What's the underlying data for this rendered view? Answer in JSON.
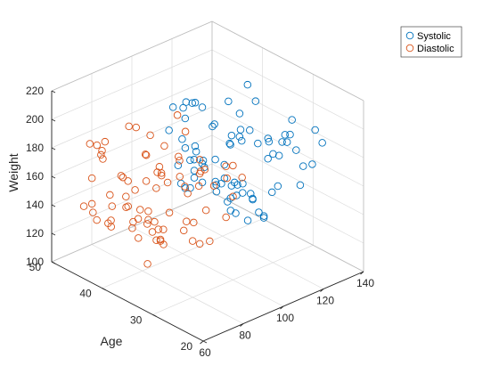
{
  "chart_data": {
    "type": "scatter",
    "title": "",
    "xlabel": "",
    "ylabel": "Age",
    "zlabel": "Weight",
    "xlim": [
      60,
      140
    ],
    "ylim": [
      20,
      50
    ],
    "zlim": [
      100,
      220
    ],
    "xticks": [
      "60",
      "80",
      "100",
      "120",
      "140"
    ],
    "yticks": [
      "20",
      "30",
      "40",
      "50"
    ],
    "zticks": [
      "100",
      "120",
      "140",
      "160",
      "180",
      "200",
      "220"
    ],
    "grid": true,
    "box": true,
    "legend_position": "top-right",
    "series": [
      {
        "name": "Systolic",
        "color": "#0072BD",
        "marker": "circle",
        "points": [
          [
            124,
            38,
            176
          ],
          [
            109,
            43,
            163
          ],
          [
            125,
            38,
            131
          ],
          [
            117,
            40,
            133
          ],
          [
            122,
            49,
            119
          ],
          [
            121,
            46,
            142
          ],
          [
            130,
            33,
            142
          ],
          [
            115,
            40,
            180
          ],
          [
            115,
            28,
            183
          ],
          [
            118,
            31,
            132
          ],
          [
            114,
            45,
            128
          ],
          [
            115,
            42,
            137
          ],
          [
            127,
            25,
            174
          ],
          [
            130,
            39,
            202
          ],
          [
            114,
            36,
            129
          ],
          [
            130,
            48,
            130
          ],
          [
            114,
            44,
            130
          ],
          [
            127,
            43,
            127
          ],
          [
            126,
            30,
            186
          ],
          [
            115,
            33,
            127
          ],
          [
            116,
            44,
            136
          ],
          [
            115,
            46,
            160
          ],
          [
            125,
            26,
            172
          ],
          [
            123,
            33,
            124
          ],
          [
            120,
            31,
            171
          ],
          [
            118,
            30,
            186
          ],
          [
            118,
            28,
            180
          ],
          [
            121,
            40,
            140
          ],
          [
            116,
            42,
            147
          ],
          [
            115,
            34,
            151
          ],
          [
            136,
            28,
            187
          ],
          [
            130,
            38,
            124
          ],
          [
            115,
            29,
            192
          ],
          [
            119,
            38,
            131
          ],
          [
            129,
            38,
            128
          ],
          [
            122,
            39,
            136
          ],
          [
            116,
            44,
            141
          ],
          [
            121,
            37,
            191
          ],
          [
            129,
            42,
            155
          ],
          [
            116,
            40,
            181
          ],
          [
            120,
            39,
            126
          ],
          [
            119,
            41,
            137
          ],
          [
            126,
            29,
            188
          ],
          [
            116,
            37,
            173
          ],
          [
            126,
            40,
            134
          ],
          [
            129,
            45,
            139
          ],
          [
            134,
            39,
            188
          ],
          [
            116,
            49,
            160
          ],
          [
            122,
            46,
            147
          ],
          [
            123,
            45,
            142
          ],
          [
            115,
            44,
            189
          ],
          [
            124,
            48,
            136
          ],
          [
            123,
            34,
            126
          ],
          [
            118,
            49,
            175
          ],
          [
            125,
            36,
            130
          ],
          [
            117,
            35,
            178
          ],
          [
            130,
            41,
            128
          ],
          [
            119,
            45,
            185
          ],
          [
            114,
            45,
            177
          ],
          [
            118,
            48,
            136
          ],
          [
            114,
            35,
            129
          ],
          [
            122,
            38,
            131
          ],
          [
            128,
            42,
            186
          ],
          [
            132,
            25,
            186
          ],
          [
            120,
            33,
            178
          ],
          [
            132,
            31,
            191
          ],
          [
            129,
            49,
            141
          ],
          [
            117,
            27,
            192
          ],
          [
            126,
            39,
            168
          ],
          [
            131,
            44,
            136
          ],
          [
            122,
            28,
            187
          ],
          [
            121,
            35,
            183
          ],
          [
            117,
            37,
            178
          ],
          [
            120,
            44,
            183
          ],
          [
            113,
            45,
            185
          ],
          [
            121,
            25,
            163
          ],
          [
            124,
            27,
            182
          ],
          [
            122,
            48,
            178
          ],
          [
            122,
            42,
            131
          ],
          [
            117,
            29,
            153
          ]
        ]
      },
      {
        "name": "Diastolic",
        "color": "#D95319",
        "marker": "circle",
        "points": [
          [
            93,
            38,
            176
          ],
          [
            77,
            43,
            163
          ],
          [
            83,
            38,
            131
          ],
          [
            75,
            40,
            133
          ],
          [
            80,
            49,
            119
          ],
          [
            70,
            46,
            142
          ],
          [
            88,
            33,
            142
          ],
          [
            82,
            40,
            180
          ],
          [
            78,
            28,
            183
          ],
          [
            86,
            31,
            132
          ],
          [
            77,
            45,
            128
          ],
          [
            68,
            42,
            137
          ],
          [
            74,
            25,
            174
          ],
          [
            95,
            39,
            202
          ],
          [
            79,
            36,
            129
          ],
          [
            92,
            48,
            130
          ],
          [
            89,
            44,
            130
          ],
          [
            83,
            43,
            127
          ],
          [
            86,
            30,
            186
          ],
          [
            65,
            33,
            127
          ],
          [
            83,
            44,
            136
          ],
          [
            70,
            46,
            160
          ],
          [
            90,
            26,
            172
          ],
          [
            96,
            33,
            124
          ],
          [
            80,
            31,
            171
          ],
          [
            84,
            30,
            186
          ],
          [
            92,
            28,
            180
          ],
          [
            83,
            40,
            140
          ],
          [
            92,
            42,
            147
          ],
          [
            71,
            34,
            151
          ],
          [
            95,
            28,
            187
          ],
          [
            82,
            38,
            124
          ],
          [
            71,
            29,
            192
          ],
          [
            73,
            38,
            131
          ],
          [
            97,
            38,
            128
          ],
          [
            91,
            39,
            136
          ],
          [
            75,
            44,
            141
          ],
          [
            74,
            37,
            191
          ],
          [
            87,
            42,
            155
          ],
          [
            91,
            40,
            181
          ],
          [
            88,
            39,
            126
          ],
          [
            67,
            41,
            137
          ],
          [
            81,
            29,
            188
          ],
          [
            82,
            37,
            173
          ],
          [
            83,
            40,
            134
          ],
          [
            68,
            45,
            139
          ],
          [
            99,
            39,
            188
          ],
          [
            83,
            49,
            160
          ],
          [
            88,
            46,
            147
          ],
          [
            89,
            45,
            142
          ],
          [
            87,
            44,
            189
          ],
          [
            71,
            48,
            136
          ],
          [
            90,
            34,
            126
          ],
          [
            96,
            49,
            175
          ],
          [
            79,
            36,
            130
          ],
          [
            77,
            35,
            178
          ],
          [
            85,
            41,
            128
          ],
          [
            70,
            45,
            185
          ],
          [
            72,
            45,
            177
          ],
          [
            84,
            48,
            136
          ],
          [
            78,
            35,
            129
          ],
          [
            80,
            38,
            131
          ],
          [
            89,
            42,
            186
          ],
          [
            92,
            25,
            186
          ],
          [
            75,
            33,
            178
          ],
          [
            86,
            31,
            191
          ],
          [
            93,
            49,
            141
          ],
          [
            89,
            27,
            192
          ],
          [
            85,
            39,
            168
          ],
          [
            82,
            44,
            136
          ],
          [
            71,
            28,
            187
          ],
          [
            86,
            35,
            183
          ],
          [
            81,
            37,
            178
          ],
          [
            70,
            44,
            183
          ],
          [
            74,
            45,
            185
          ],
          [
            84,
            25,
            163
          ],
          [
            83,
            27,
            182
          ],
          [
            74,
            48,
            178
          ],
          [
            83,
            42,
            131
          ],
          [
            73,
            29,
            153
          ]
        ]
      }
    ]
  }
}
